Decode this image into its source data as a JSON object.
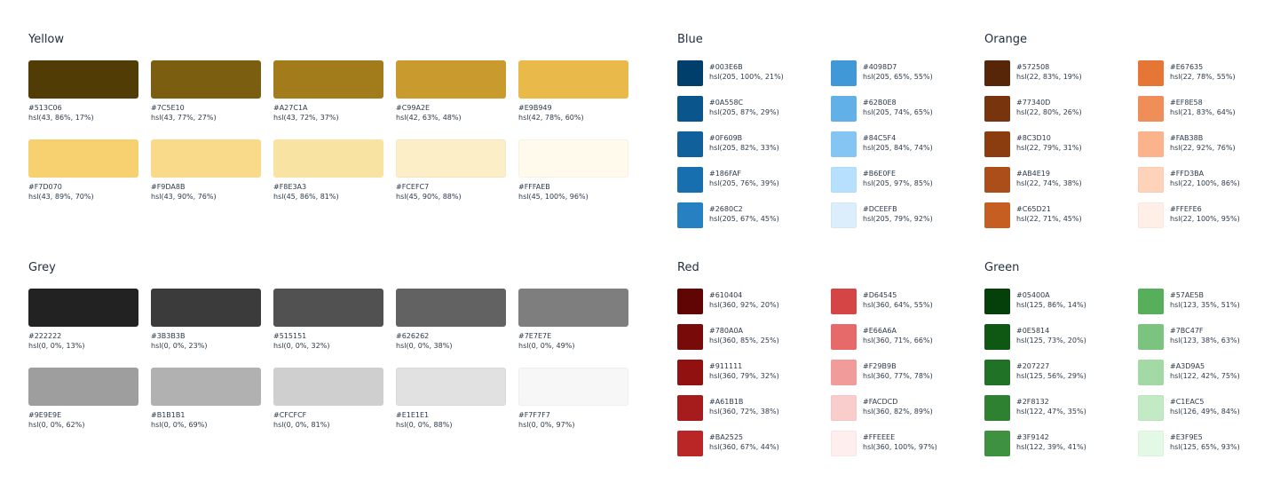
{
  "palettes": {
    "yellow": {
      "title": "Yellow",
      "colors": [
        {
          "hex": "#513C06",
          "hsl": "hsl(43, 86%, 17%)"
        },
        {
          "hex": "#7C5E10",
          "hsl": "hsl(43, 77%, 27%)"
        },
        {
          "hex": "#A27C1A",
          "hsl": "hsl(43, 72%, 37%)"
        },
        {
          "hex": "#C99A2E",
          "hsl": "hsl(42, 63%, 48%)"
        },
        {
          "hex": "#E9B949",
          "hsl": "hsl(42, 78%, 60%)"
        },
        {
          "hex": "#F7D070",
          "hsl": "hsl(43, 89%, 70%)"
        },
        {
          "hex": "#F9DA8B",
          "hsl": "hsl(43, 90%, 76%)"
        },
        {
          "hex": "#F8E3A3",
          "hsl": "hsl(45, 86%, 81%)"
        },
        {
          "hex": "#FCEFC7",
          "hsl": "hsl(45, 90%, 88%)"
        },
        {
          "hex": "#FFFAEB",
          "hsl": "hsl(45, 100%, 96%)"
        }
      ]
    },
    "grey": {
      "title": "Grey",
      "colors": [
        {
          "hex": "#222222",
          "hsl": "hsl(0, 0%, 13%)"
        },
        {
          "hex": "#3B3B3B",
          "hsl": "hsl(0, 0%, 23%)"
        },
        {
          "hex": "#515151",
          "hsl": "hsl(0, 0%, 32%)"
        },
        {
          "hex": "#626262",
          "hsl": "hsl(0, 0%, 38%)"
        },
        {
          "hex": "#7E7E7E",
          "hsl": "hsl(0, 0%, 49%)"
        },
        {
          "hex": "#9E9E9E",
          "hsl": "hsl(0, 0%, 62%)"
        },
        {
          "hex": "#B1B1B1",
          "hsl": "hsl(0, 0%, 69%)"
        },
        {
          "hex": "#CFCFCF",
          "hsl": "hsl(0, 0%, 81%)"
        },
        {
          "hex": "#E1E1E1",
          "hsl": "hsl(0, 0%, 88%)"
        },
        {
          "hex": "#F7F7F7",
          "hsl": "hsl(0, 0%, 97%)"
        }
      ]
    },
    "blue": {
      "title": "Blue",
      "colors": [
        {
          "hex": "#003E6B",
          "hsl": "hsl(205, 100%, 21%)"
        },
        {
          "hex": "#0A558C",
          "hsl": "hsl(205, 87%, 29%)"
        },
        {
          "hex": "#0F609B",
          "hsl": "hsl(205, 82%, 33%)"
        },
        {
          "hex": "#186FAF",
          "hsl": "hsl(205, 76%, 39%)"
        },
        {
          "hex": "#2680C2",
          "hsl": "hsl(205, 67%, 45%)"
        },
        {
          "hex": "#4098D7",
          "hsl": "hsl(205, 65%, 55%)"
        },
        {
          "hex": "#62B0E8",
          "hsl": "hsl(205, 74%, 65%)"
        },
        {
          "hex": "#84C5F4",
          "hsl": "hsl(205, 84%, 74%)"
        },
        {
          "hex": "#B6E0FE",
          "hsl": "hsl(205, 97%, 85%)"
        },
        {
          "hex": "#DCEEFB",
          "hsl": "hsl(205, 79%, 92%)"
        }
      ]
    },
    "orange": {
      "title": "Orange",
      "colors": [
        {
          "hex": "#572508",
          "hsl": "hsl(22, 83%, 19%)"
        },
        {
          "hex": "#77340D",
          "hsl": "hsl(22, 80%, 26%)"
        },
        {
          "hex": "#8C3D10",
          "hsl": "hsl(22, 79%, 31%)"
        },
        {
          "hex": "#AB4E19",
          "hsl": "hsl(22, 74%, 38%)"
        },
        {
          "hex": "#C65D21",
          "hsl": "hsl(22, 71%, 45%)"
        },
        {
          "hex": "#E67635",
          "hsl": "hsl(22, 78%, 55%)"
        },
        {
          "hex": "#EF8E58",
          "hsl": "hsl(21, 83%, 64%)"
        },
        {
          "hex": "#FAB38B",
          "hsl": "hsl(22, 92%, 76%)"
        },
        {
          "hex": "#FFD3BA",
          "hsl": "hsl(22, 100%, 86%)"
        },
        {
          "hex": "#FFEFE6",
          "hsl": "hsl(22, 100%, 95%)"
        }
      ]
    },
    "red": {
      "title": "Red",
      "colors": [
        {
          "hex": "#610404",
          "hsl": "hsl(360, 92%, 20%)"
        },
        {
          "hex": "#780A0A",
          "hsl": "hsl(360, 85%, 25%)"
        },
        {
          "hex": "#911111",
          "hsl": "hsl(360, 79%, 32%)"
        },
        {
          "hex": "#A61B1B",
          "hsl": "hsl(360, 72%, 38%)"
        },
        {
          "hex": "#BA2525",
          "hsl": "hsl(360, 67%, 44%)"
        },
        {
          "hex": "#D64545",
          "hsl": "hsl(360, 64%, 55%)"
        },
        {
          "hex": "#E66A6A",
          "hsl": "hsl(360, 71%, 66%)"
        },
        {
          "hex": "#F29B9B",
          "hsl": "hsl(360, 77%, 78%)"
        },
        {
          "hex": "#FACDCD",
          "hsl": "hsl(360, 82%, 89%)"
        },
        {
          "hex": "#FFEEEE",
          "hsl": "hsl(360, 100%, 97%)"
        }
      ]
    },
    "green": {
      "title": "Green",
      "colors": [
        {
          "hex": "#05400A",
          "hsl": "hsl(125, 86%, 14%)"
        },
        {
          "hex": "#0E5814",
          "hsl": "hsl(125, 73%, 20%)"
        },
        {
          "hex": "#207227",
          "hsl": "hsl(125, 56%, 29%)"
        },
        {
          "hex": "#2F8132",
          "hsl": "hsl(122, 47%, 35%)"
        },
        {
          "hex": "#3F9142",
          "hsl": "hsl(122, 39%, 41%)"
        },
        {
          "hex": "#57AE5B",
          "hsl": "hsl(123, 35%, 51%)"
        },
        {
          "hex": "#7BC47F",
          "hsl": "hsl(123, 38%, 63%)"
        },
        {
          "hex": "#A3D9A5",
          "hsl": "hsl(122, 42%, 75%)"
        },
        {
          "hex": "#C1EAC5",
          "hsl": "hsl(126, 49%, 84%)"
        },
        {
          "hex": "#E3F9E5",
          "hsl": "hsl(125, 65%, 93%)"
        }
      ]
    }
  }
}
